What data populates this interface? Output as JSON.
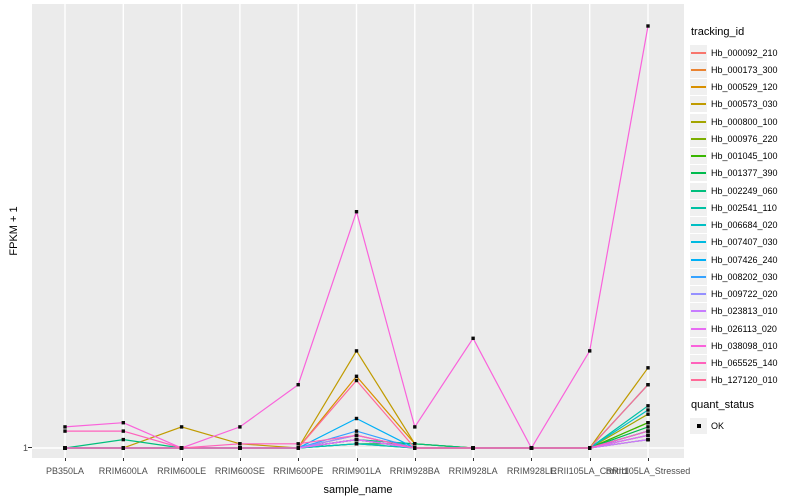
{
  "chart": {
    "type": "line",
    "x_axis": {
      "label": "sample_name",
      "categories": [
        "PB350LA",
        "RRIM600LA",
        "RRIM600LE",
        "RRIM600SE",
        "RRIM600PE",
        "RRIM901LA",
        "RRIM928BA",
        "RRIM928LA",
        "RRIM928LE",
        "RRII105LA_Control",
        "RRII105LA_Stressed"
      ]
    },
    "y_axis": {
      "label": "FPKM + 1",
      "tick_labels": [
        "1"
      ],
      "note": "only the baseline tick '1' is labeled; series values below are relative heights, 0 = baseline (FPKM+1 = 1), 100 = tallest peak"
    },
    "legend": {
      "tracking_title": "tracking_id",
      "quant_title": "quant_status",
      "quant_items": [
        {
          "label": "OK",
          "marker": "black-square"
        }
      ]
    },
    "colors": {
      "panel_bg": "#EBEBEB",
      "gridline": "#FFFFFF",
      "marker": "#0a0a0a",
      "tick_text": "#4D4D4D"
    },
    "series": [
      {
        "name": "Hb_000092_210",
        "color": "#F8766D",
        "values": [
          0,
          0,
          0,
          0,
          0,
          2,
          0,
          0,
          0,
          0,
          2
        ]
      },
      {
        "name": "Hb_000173_300",
        "color": "#EA8331",
        "values": [
          0,
          0,
          0,
          0,
          0,
          3,
          0,
          0,
          0,
          0,
          3
        ]
      },
      {
        "name": "Hb_000529_120",
        "color": "#D89000",
        "values": [
          0,
          0,
          0,
          0,
          0,
          17,
          1,
          0,
          0,
          0,
          2
        ]
      },
      {
        "name": "Hb_000573_030",
        "color": "#C09B00",
        "values": [
          0,
          0,
          5,
          1,
          0,
          23,
          1,
          0,
          0,
          0,
          19
        ]
      },
      {
        "name": "Hb_000800_100",
        "color": "#A3A500",
        "values": [
          0,
          0,
          0,
          0,
          0,
          2,
          0,
          0,
          0,
          0,
          8
        ]
      },
      {
        "name": "Hb_000976_220",
        "color": "#7CAE00",
        "values": [
          0,
          0,
          0,
          0,
          0,
          2,
          0,
          0,
          0,
          0,
          6
        ]
      },
      {
        "name": "Hb_001045_100",
        "color": "#39B600",
        "values": [
          0,
          0,
          0,
          0,
          0,
          1,
          0,
          0,
          0,
          0,
          6
        ]
      },
      {
        "name": "Hb_001377_390",
        "color": "#00BB4E",
        "values": [
          0,
          0,
          0,
          0,
          0,
          1,
          1,
          0,
          0,
          0,
          5
        ]
      },
      {
        "name": "Hb_002249_060",
        "color": "#00BF7D",
        "values": [
          0,
          2,
          0,
          0,
          0,
          2,
          1,
          0,
          0,
          0,
          15
        ]
      },
      {
        "name": "Hb_002541_110",
        "color": "#00C1A3",
        "values": [
          0,
          0,
          0,
          0,
          0,
          2,
          0,
          0,
          0,
          0,
          10
        ]
      },
      {
        "name": "Hb_006684_020",
        "color": "#00BFC4",
        "values": [
          0,
          0,
          0,
          0,
          0,
          1,
          0,
          0,
          0,
          0,
          9
        ]
      },
      {
        "name": "Hb_007407_030",
        "color": "#00BAE0",
        "values": [
          0,
          0,
          0,
          0,
          0,
          2,
          0,
          0,
          0,
          0,
          4
        ]
      },
      {
        "name": "Hb_007426_240",
        "color": "#00B0F6",
        "values": [
          0,
          0,
          0,
          0,
          0,
          7,
          0,
          0,
          0,
          0,
          4
        ]
      },
      {
        "name": "Hb_008202_030",
        "color": "#35A2FF",
        "values": [
          0,
          0,
          0,
          0,
          0,
          4,
          0,
          0,
          0,
          0,
          3
        ]
      },
      {
        "name": "Hb_009722_020",
        "color": "#9590FF",
        "values": [
          0,
          0,
          0,
          0,
          0,
          3,
          0,
          0,
          0,
          0,
          2
        ]
      },
      {
        "name": "Hb_023813_010",
        "color": "#C77CFF",
        "values": [
          0,
          0,
          0,
          0,
          0,
          2,
          0,
          0,
          0,
          0,
          2
        ]
      },
      {
        "name": "Hb_026113_020",
        "color": "#E76BF3",
        "values": [
          0,
          0,
          0,
          0,
          0,
          2,
          0,
          0,
          0,
          0,
          3
        ]
      },
      {
        "name": "Hb_038098_010",
        "color": "#FA62DB",
        "values": [
          5,
          6,
          0,
          5,
          15,
          56,
          5,
          26,
          0,
          23,
          100
        ]
      },
      {
        "name": "Hb_065525_140",
        "color": "#FF62BC",
        "values": [
          4,
          4,
          0,
          1,
          1,
          3,
          0,
          0,
          0,
          0,
          4
        ]
      },
      {
        "name": "Hb_127120_010",
        "color": "#FF6A98",
        "values": [
          0,
          0,
          0,
          0,
          0,
          16,
          0,
          0,
          0,
          0,
          15
        ]
      }
    ]
  },
  "chart_data": {
    "type": "line",
    "title": "",
    "xlabel": "sample_name",
    "ylabel": "FPKM + 1",
    "categories": [
      "PB350LA",
      "RRIM600LA",
      "RRIM600LE",
      "RRIM600SE",
      "RRIM600PE",
      "RRIM901LA",
      "RRIM928BA",
      "RRIM928LA",
      "RRIM928LE",
      "RRII105LA_Control",
      "RRII105LA_Stressed"
    ],
    "y_tick_labels": [
      "1"
    ],
    "legend_position": "right",
    "grid": "white-on-gray",
    "series_ref": "see chart.series (20 tracking_id series, values relative: 0=FPKM+1 of 1, 100=max peak of Hb_038098_010 at RRII105LA_Stressed)"
  }
}
